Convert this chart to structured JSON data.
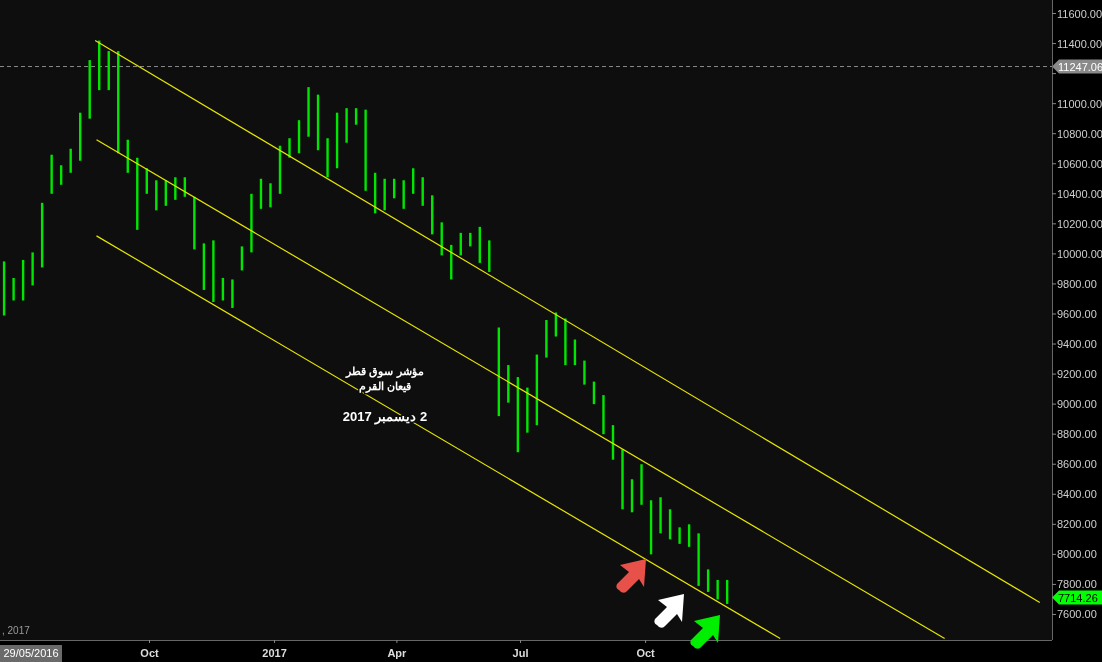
{
  "chart_data": {
    "type": "bar",
    "x": [
      "2016-06-16",
      "2016-06-23",
      "2016-06-30",
      "2016-07-07",
      "2016-07-14",
      "2016-07-21",
      "2016-07-28",
      "2016-08-04",
      "2016-08-11",
      "2016-08-18",
      "2016-08-25",
      "2016-09-01",
      "2016-09-08",
      "2016-09-15",
      "2016-09-22",
      "2016-09-29",
      "2016-10-06",
      "2016-10-13",
      "2016-10-20",
      "2016-10-27",
      "2016-11-03",
      "2016-11-10",
      "2016-11-17",
      "2016-11-24",
      "2016-12-01",
      "2016-12-08",
      "2016-12-15",
      "2016-12-22",
      "2016-12-29",
      "2017-01-05",
      "2017-01-12",
      "2017-01-19",
      "2017-01-26",
      "2017-02-02",
      "2017-02-09",
      "2017-02-16",
      "2017-02-23",
      "2017-03-02",
      "2017-03-09",
      "2017-03-16",
      "2017-03-23",
      "2017-03-30",
      "2017-04-06",
      "2017-04-13",
      "2017-04-20",
      "2017-04-27",
      "2017-05-04",
      "2017-05-11",
      "2017-05-18",
      "2017-05-25",
      "2017-06-01",
      "2017-06-08",
      "2017-06-15",
      "2017-06-22",
      "2017-06-29",
      "2017-07-06",
      "2017-07-13",
      "2017-07-20",
      "2017-07-27",
      "2017-08-03",
      "2017-08-10",
      "2017-08-17",
      "2017-08-24",
      "2017-08-31",
      "2017-09-07",
      "2017-09-14",
      "2017-09-21",
      "2017-09-28",
      "2017-10-05",
      "2017-10-12",
      "2017-10-19",
      "2017-10-26",
      "2017-11-02",
      "2017-11-09",
      "2017-11-16",
      "2017-11-23",
      "2017-11-30"
    ],
    "series": [
      {
        "color": "#00e600",
        "values": [
          360,
          150,
          270,
          220,
          430,
          260,
          130,
          160,
          320,
          390,
          330,
          260,
          680,
          220,
          480,
          170,
          200,
          170,
          150,
          130,
          350,
          310,
          410,
          150,
          190,
          160,
          390,
          200,
          160,
          320,
          130,
          220,
          330,
          370,
          260,
          370,
          230,
          110,
          540,
          270,
          210,
          130,
          190,
          170,
          190,
          260,
          220,
          230,
          150,
          90,
          240,
          210,
          590,
          250,
          500,
          300,
          470,
          250,
          160,
          310,
          170,
          160,
          150,
          260,
          230,
          400,
          220,
          270,
          360,
          240,
          200,
          110,
          150,
          350,
          150,
          130,
          160
        ],
        "base": [
          9590,
          9690,
          9690,
          9790,
          9910,
          10400,
          10460,
          10540,
          10620,
          10900,
          11090,
          11090,
          10670,
          10540,
          10160,
          10400,
          10290,
          10320,
          10360,
          10380,
          10030,
          9760,
          9680,
          9690,
          9640,
          9890,
          10010,
          10300,
          10310,
          10400,
          10640,
          10670,
          10780,
          10690,
          10510,
          10570,
          10740,
          10860,
          10420,
          10270,
          10290,
          10370,
          10300,
          10400,
          10320,
          10130,
          9990,
          9830,
          9990,
          10050,
          9940,
          9880,
          8920,
          9010,
          8680,
          8810,
          8860,
          9310,
          9450,
          9260,
          9260,
          9130,
          9000,
          8800,
          8630,
          8300,
          8280,
          8330,
          8000,
          8140,
          8100,
          8070,
          8050,
          7790,
          7750,
          7700,
          7670
        ]
      },
      {
        "type": "line",
        "color": "#e6e600",
        "x": [
          "2016-08-22",
          "2018-07-18"
        ],
        "values": [
          11420,
          7680
        ]
      },
      {
        "type": "line",
        "color": "#e6e600",
        "x": [
          "2016-08-23",
          "2018-05-09"
        ],
        "values": [
          10760,
          7440
        ]
      },
      {
        "type": "line",
        "color": "#e6e600",
        "x": [
          "2016-08-23",
          "2018-01-08"
        ],
        "values": [
          10120,
          7440
        ]
      }
    ],
    "xlim": [
      "2016-06-13",
      "2018-07-27"
    ],
    "xticks": [
      {
        "value": "2016-10-01",
        "label": "Oct"
      },
      {
        "value": "2017-01-01",
        "label": "2017"
      },
      {
        "value": "2017-04-01",
        "label": "Apr"
      },
      {
        "value": "2017-07-01",
        "label": "Jul"
      },
      {
        "value": "2017-10-01",
        "label": "Oct"
      }
    ],
    "ylim": [
      7430,
      11690
    ],
    "yticks": [
      {
        "value": 7600,
        "label": "7600.00"
      },
      {
        "value": 7800,
        "label": "7800.00"
      },
      {
        "value": 8000,
        "label": "8000.00"
      },
      {
        "value": 8200,
        "label": "8200.00"
      },
      {
        "value": 8400,
        "label": "8400.00"
      },
      {
        "value": 8600,
        "label": "8600.00"
      },
      {
        "value": 8800,
        "label": "8800.00"
      },
      {
        "value": 9000,
        "label": "9000.00"
      },
      {
        "value": 9200,
        "label": "9200.00"
      },
      {
        "value": 9400,
        "label": "9400.00"
      },
      {
        "value": 9600,
        "label": "9600.00"
      },
      {
        "value": 9800,
        "label": "9800.00"
      },
      {
        "value": 10000,
        "label": "10000.00"
      },
      {
        "value": 10200,
        "label": "10200.00"
      },
      {
        "value": 10400,
        "label": "10400.00"
      },
      {
        "value": 10600,
        "label": "10600.00"
      },
      {
        "value": 10800,
        "label": "10800.00"
      },
      {
        "value": 11000,
        "label": "11000.00"
      },
      {
        "value": 11200,
        "label": null
      },
      {
        "value": 11400,
        "label": "11400.00"
      },
      {
        "value": 11600,
        "label": "11600.00"
      }
    ],
    "ref_lines": [
      {
        "axis": "y",
        "value": 11247.06,
        "label": "11247.06",
        "color": "#8a8a8a",
        "line_style": "dashed"
      }
    ],
    "annotations": [
      "مؤشر سوق قطر",
      "قيعان القرم",
      "2 ديسمبر 2017",
      "29/05/2016",
      ", 2017",
      "7714.26"
    ],
    "grid": false
  }
}
